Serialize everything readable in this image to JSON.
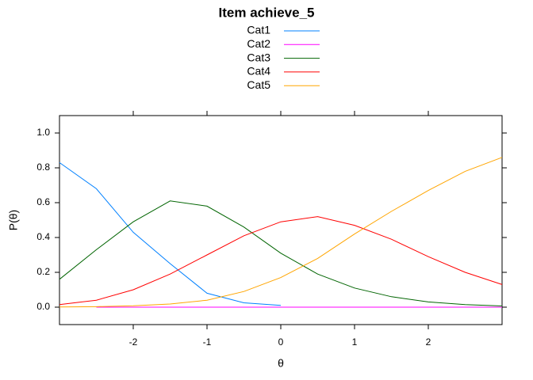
{
  "chart_data": {
    "type": "line",
    "title": "Item achieve_5",
    "x_label": "θ",
    "y_label": "P(θ)",
    "x": [
      -3,
      -2.5,
      -2,
      -1.5,
      -1,
      -0.5,
      0,
      0.5,
      1,
      1.5,
      2,
      2.5,
      3
    ],
    "series": [
      {
        "name": "Cat1",
        "color": "#0080ff",
        "values": [
          0.83,
          0.68,
          0.43,
          0.25,
          0.08,
          0.025,
          0.01,
          null,
          null,
          null,
          null,
          null,
          null
        ]
      },
      {
        "name": "Cat2",
        "color": "#ff00ff",
        "values": [
          null,
          0.0,
          0.0,
          0.0,
          0.0,
          0.0,
          0.0,
          0.0,
          0.0,
          0.0,
          0.0,
          0.0,
          0.0
        ]
      },
      {
        "name": "Cat3",
        "color": "#006400",
        "values": [
          0.16,
          0.33,
          0.49,
          0.61,
          0.58,
          0.46,
          0.31,
          0.19,
          0.11,
          0.06,
          0.03,
          0.015,
          0.007
        ]
      },
      {
        "name": "Cat4",
        "color": "#ff0000",
        "values": [
          0.015,
          0.04,
          0.1,
          0.19,
          0.3,
          0.41,
          0.49,
          0.52,
          0.47,
          0.39,
          0.29,
          0.2,
          0.13
        ]
      },
      {
        "name": "Cat5",
        "color": "#ffa500",
        "values": [
          0.001,
          0.003,
          0.008,
          0.018,
          0.04,
          0.09,
          0.17,
          0.28,
          0.42,
          0.55,
          0.67,
          0.78,
          0.86
        ]
      }
    ],
    "xlim": [
      -3,
      3
    ],
    "xticks": [
      -2,
      -1,
      0,
      1,
      2
    ],
    "ylim": [
      -0.1,
      1.1
    ],
    "yticks": [
      {
        "value": 0,
        "label": "0.0"
      },
      0.2,
      0.4,
      0.6,
      0.8,
      {
        "value": 1,
        "label": "1.0"
      }
    ]
  }
}
